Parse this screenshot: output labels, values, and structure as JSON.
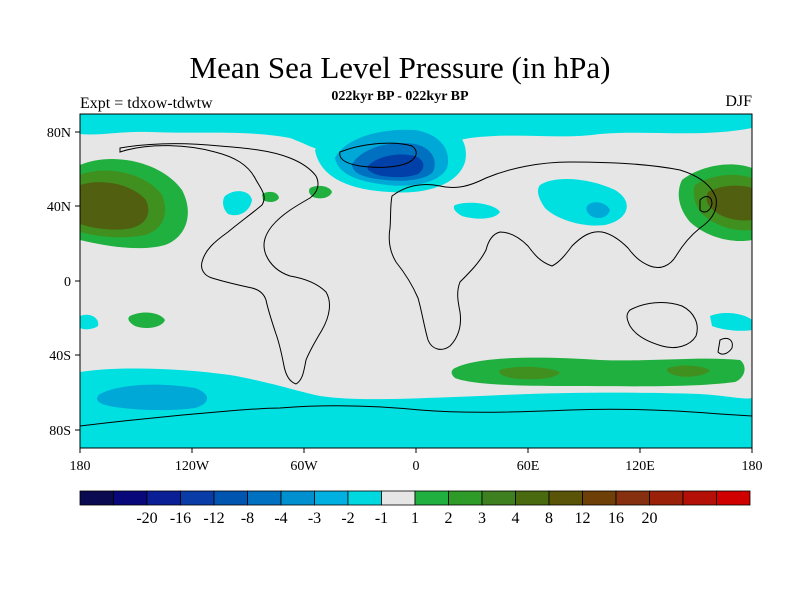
{
  "header": {
    "title": "Mean Sea Level Pressure (in hPa)",
    "subtitle": "022kyr BP - 022kyr BP",
    "left_label": "Expt = tdxow-tdwtw",
    "right_label": "DJF"
  },
  "map": {
    "lat_ticks": [
      "80N",
      "40N",
      "0",
      "40S",
      "80S"
    ],
    "lon_ticks": [
      "180",
      "120W",
      "60W",
      "0",
      "60E",
      "120E",
      "180"
    ],
    "colors": {
      "background": "#e6e6e6",
      "low_1": "#00e0e0",
      "low_2": "#00a8d8",
      "low_3": "#0070c0",
      "low_4": "#0040a8",
      "high_1": "#20b040",
      "high_2": "#409020",
      "high_3": "#506010",
      "high_4": "#684408",
      "coastline": "#000000"
    }
  },
  "legend": {
    "colors": [
      "#0a0a50",
      "#08087a",
      "#0a1f96",
      "#0a3ca8",
      "#0055b0",
      "#0070c0",
      "#0090d0",
      "#00b0e0",
      "#00d8e0",
      "#e6e6e6",
      "#20b040",
      "#2e9a28",
      "#3e8020",
      "#4a6a10",
      "#5a5408",
      "#6e4008",
      "#863010",
      "#9a2008",
      "#b41008",
      "#d00000"
    ],
    "labels": [
      "-20",
      "-16",
      "-12",
      "-8",
      "-4",
      "-3",
      "-2",
      "-1",
      "1",
      "2",
      "3",
      "4",
      "8",
      "12",
      "16",
      "20"
    ]
  }
}
